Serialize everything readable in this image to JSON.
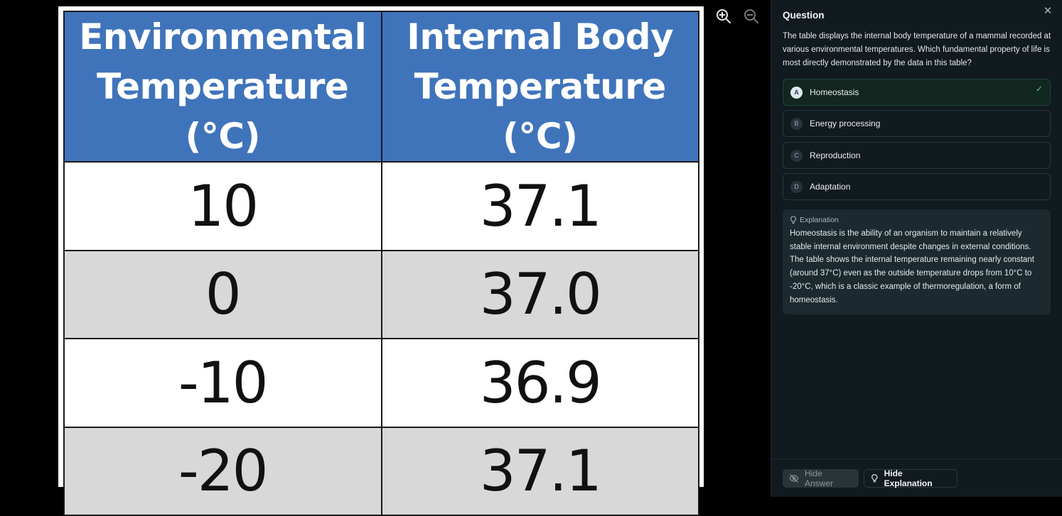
{
  "table": {
    "headers": [
      "Environmental Temperature (°C)",
      "Internal Body Temperature (°C)"
    ],
    "rows": [
      [
        "10",
        "37.1"
      ],
      [
        "0",
        "37.0"
      ],
      [
        "-10",
        "36.9"
      ],
      [
        "-20",
        "37.1"
      ]
    ]
  },
  "toolbar": {
    "zoom_in_icon": "zoom-in-icon",
    "zoom_out_icon": "zoom-out-icon"
  },
  "panel": {
    "title": "Question",
    "question": "The table displays the internal body temperature of a mammal recorded at various environmental temperatures. Which fundamental property of life is most directly demonstrated by the data in this table?",
    "options": [
      {
        "letter": "A",
        "label": "Homeostasis",
        "correct": true
      },
      {
        "letter": "B",
        "label": "Energy processing"
      },
      {
        "letter": "C",
        "label": "Reproduction"
      },
      {
        "letter": "D",
        "label": "Adaptation"
      }
    ],
    "explanation_heading": "Explanation",
    "explanation": "Homeostasis is the ability of an organism to maintain a relatively stable internal environment despite changes in external conditions. The table shows the internal temperature remaining nearly constant (around 37°C) even as the outside temperature drops from 10°C to -20°C, which is a classic example of thermoregulation, a form of homeostasis.",
    "hide_answer_label": "Hide Answer",
    "hide_explanation_label": "Hide Explanation"
  },
  "colors": {
    "header_blue": "#3f74bb",
    "row_gray": "#d8d8d8",
    "panel_bg": "#111a1e",
    "correct_bg": "#12271f"
  }
}
